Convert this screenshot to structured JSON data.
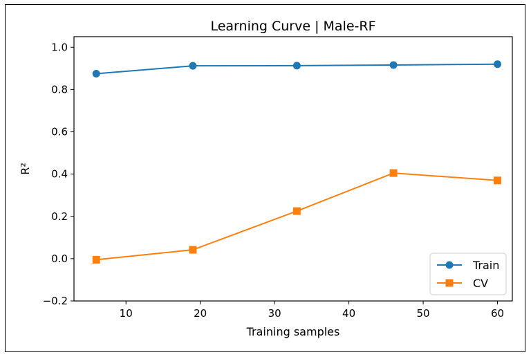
{
  "chart_data": {
    "type": "line",
    "title": "Learning Curve | Male-RF",
    "xlabel": "Training samples",
    "ylabel": "R²",
    "xlim": [
      3,
      62
    ],
    "ylim": [
      -0.2,
      1.05
    ],
    "x": [
      6,
      19,
      33,
      46,
      60
    ],
    "xticks": [
      10,
      20,
      30,
      40,
      50,
      60
    ],
    "xtick_labels": [
      "10",
      "20",
      "30",
      "40",
      "50",
      "60"
    ],
    "yticks": [
      -0.2,
      0.0,
      0.2,
      0.4,
      0.6,
      0.8,
      1.0
    ],
    "ytick_labels": [
      "−0.2",
      "0.0",
      "0.2",
      "0.4",
      "0.6",
      "0.8",
      "1.0"
    ],
    "series": [
      {
        "name": "Train",
        "values": [
          0.875,
          0.912,
          0.913,
          0.916,
          0.92
        ],
        "color": "#1f77b4",
        "marker": "circle"
      },
      {
        "name": "CV",
        "values": [
          -0.005,
          0.042,
          0.225,
          0.405,
          0.37
        ],
        "color": "#ff7f0e",
        "marker": "square"
      }
    ],
    "legend_position": "lower-right",
    "grid": false
  }
}
